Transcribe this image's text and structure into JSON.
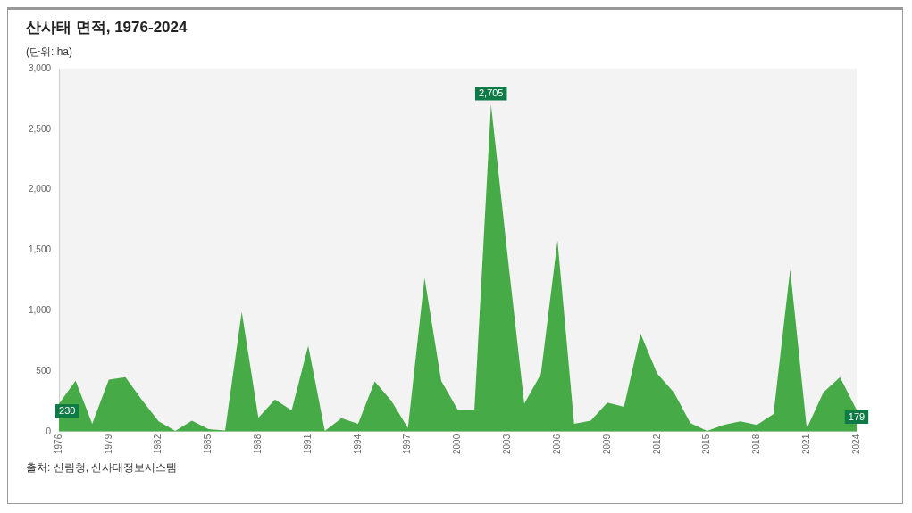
{
  "chart_data": {
    "type": "area",
    "title": "산사태 면적, 1976-2024",
    "ylabel": "(단위: ha)",
    "annotations": [
      "출처: 산림청, 산사태정보시스템"
    ],
    "categories": [
      "1976",
      null,
      null,
      "1979",
      null,
      null,
      "1982",
      null,
      null,
      "1985",
      null,
      null,
      "1988",
      null,
      null,
      "1991",
      null,
      null,
      "1994",
      null,
      null,
      "1997",
      null,
      null,
      "2000",
      null,
      null,
      "2003",
      null,
      null,
      "2006",
      null,
      null,
      "2009",
      null,
      null,
      "2012",
      null,
      null,
      "2015",
      null,
      null,
      "2018",
      null,
      null,
      "2021",
      null,
      null,
      "2024"
    ],
    "values": [
      230,
      420,
      65,
      430,
      450,
      260,
      85,
      5,
      90,
      20,
      10,
      990,
      115,
      265,
      175,
      710,
      5,
      110,
      65,
      415,
      255,
      30,
      1270,
      420,
      180,
      180,
      2705,
      1450,
      230,
      475,
      1580,
      65,
      90,
      240,
      205,
      810,
      480,
      325,
      70,
      5,
      55,
      85,
      55,
      145,
      1340,
      25,
      325,
      450,
      179
    ],
    "value_labels": [
      "230",
      null,
      null,
      null,
      null,
      null,
      null,
      null,
      null,
      null,
      null,
      null,
      null,
      null,
      null,
      null,
      null,
      null,
      null,
      null,
      null,
      null,
      null,
      null,
      null,
      null,
      "2,705",
      null,
      null,
      null,
      null,
      null,
      null,
      null,
      null,
      null,
      null,
      null,
      null,
      null,
      null,
      null,
      null,
      null,
      null,
      null,
      null,
      null,
      "179"
    ],
    "color": "#46ab46",
    "ylim": [
      0,
      3000
    ],
    "yticks": [
      0,
      {
        "value": 500,
        "label": "500"
      },
      {
        "value": 1000,
        "label": "1,000"
      },
      {
        "value": 1500,
        "label": "1,500"
      },
      {
        "value": 2000,
        "label": "2,000"
      },
      {
        "value": 2500,
        "label": "2,500"
      },
      {
        "value": 3000,
        "label": "3,000"
      }
    ],
    "grid": false,
    "legend": false
  }
}
